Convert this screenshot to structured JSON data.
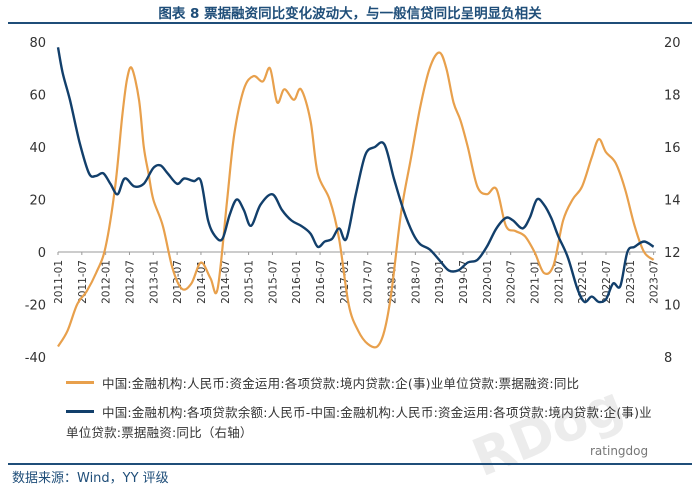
{
  "header": {
    "title": "图表 8 票据融资同比变化波动大，与一般信贷同比呈明显负相关"
  },
  "footer": {
    "source": "数据来源：Wind，YY 评级",
    "watermark": "ratingdog",
    "wm_mark": "RDog"
  },
  "colors": {
    "series1": "#e8a04c",
    "series2": "#123f6b",
    "accent": "#1f4e79"
  },
  "chart_data": {
    "type": "line",
    "title": "图表 8 票据融资同比变化波动大，与一般信贷同比呈明显负相关",
    "x_tick_labels": [
      "2011-01",
      "2011-07",
      "2012-01",
      "2012-07",
      "2013-01",
      "2013-07",
      "2014-01",
      "2014-07",
      "2015-01",
      "2015-07",
      "2016-01",
      "2016-07",
      "2017-01",
      "2017-07",
      "2018-01",
      "2018-07",
      "2019-01",
      "2019-07",
      "2020-01",
      "2020-07",
      "2021-01",
      "2021-07",
      "2022-01",
      "2022-07",
      "2023-01",
      "2023-07"
    ],
    "left_axis": {
      "ylim": [
        -40,
        80
      ],
      "ticks": [
        -40,
        -20,
        0,
        20,
        40,
        60,
        80
      ]
    },
    "right_axis": {
      "ylim": [
        8,
        20
      ],
      "ticks": [
        8,
        10,
        12,
        14,
        16,
        18,
        20
      ]
    },
    "grid": false,
    "legend": "bottom",
    "series": [
      {
        "name": "中国:金融机构:人民币:资金运用:各项贷款:境内贷款:企(事)业单位贷款:票据融资:同比",
        "axis": "left",
        "x": [
          2011.0,
          2011.2,
          2011.4,
          2011.6,
          2011.8,
          2012.0,
          2012.2,
          2012.35,
          2012.45,
          2012.55,
          2012.7,
          2012.8,
          2012.9,
          2013.0,
          2013.2,
          2013.4,
          2013.6,
          2013.8,
          2014.0,
          2014.2,
          2014.35,
          2014.55,
          2014.7,
          2014.9,
          2015.1,
          2015.3,
          2015.45,
          2015.6,
          2015.75,
          2015.95,
          2016.1,
          2016.3,
          2016.45,
          2016.7,
          2016.9,
          2017.1,
          2017.3,
          2017.5,
          2017.7,
          2017.85,
          2018.0,
          2018.2,
          2018.4,
          2018.6,
          2018.8,
          2019.0,
          2019.15,
          2019.3,
          2019.45,
          2019.6,
          2019.8,
          2020.0,
          2020.2,
          2020.4,
          2020.6,
          2020.8,
          2021.0,
          2021.2,
          2021.4,
          2021.6,
          2021.8,
          2022.0,
          2022.2,
          2022.35,
          2022.5,
          2022.7,
          2022.9,
          2023.1,
          2023.3,
          2023.5
        ],
        "values": [
          -36,
          -30,
          -20,
          -15,
          -8,
          2,
          25,
          52,
          66,
          70,
          58,
          40,
          30,
          20,
          10,
          -6,
          -14,
          -12,
          -4,
          -10,
          -14,
          20,
          45,
          62,
          67,
          65,
          70,
          57,
          62,
          58,
          62,
          50,
          30,
          20,
          5,
          -20,
          -30,
          -35,
          -36,
          -30,
          -15,
          15,
          35,
          55,
          70,
          76,
          70,
          57,
          50,
          40,
          25,
          22,
          24,
          10,
          8,
          6,
          0,
          -8,
          -5,
          12,
          20,
          25,
          36,
          43,
          38,
          34,
          24,
          10,
          0,
          -3
        ]
      },
      {
        "name": "中国:金融机构:各项贷款余额:人民币-中国:金融机构:人民币:资金运用:各项贷款:境内贷款:企(事)业单位贷款:票据融资:同比（右轴）",
        "axis": "right",
        "x": [
          2011.0,
          2011.1,
          2011.25,
          2011.45,
          2011.65,
          2011.8,
          2011.95,
          2012.1,
          2012.25,
          2012.4,
          2012.6,
          2012.8,
          2013.0,
          2013.15,
          2013.3,
          2013.5,
          2013.65,
          2013.85,
          2014.0,
          2014.15,
          2014.3,
          2014.45,
          2014.6,
          2014.75,
          2014.9,
          2015.05,
          2015.25,
          2015.5,
          2015.7,
          2015.9,
          2016.1,
          2016.3,
          2016.45,
          2016.6,
          2016.75,
          2016.9,
          2017.05,
          2017.25,
          2017.45,
          2017.65,
          2017.85,
          2018.05,
          2018.25,
          2018.45,
          2018.6,
          2018.8,
          2019.0,
          2019.2,
          2019.4,
          2019.6,
          2019.8,
          2020.0,
          2020.2,
          2020.4,
          2020.55,
          2020.75,
          2020.9,
          2021.05,
          2021.2,
          2021.35,
          2021.5,
          2021.7,
          2021.9,
          2022.05,
          2022.2,
          2022.35,
          2022.5,
          2022.65,
          2022.8,
          2022.95,
          2023.1,
          2023.3,
          2023.5
        ],
        "values": [
          19.8,
          18.8,
          17.8,
          16.2,
          15,
          14.9,
          15,
          14.6,
          14.2,
          14.8,
          14.5,
          14.6,
          15.2,
          15.3,
          15,
          14.6,
          14.8,
          14.7,
          14.7,
          13.2,
          12.6,
          12.5,
          13.4,
          14,
          13.6,
          13,
          13.8,
          14.2,
          13.6,
          13.2,
          13,
          12.7,
          12.2,
          12.4,
          12.5,
          12.9,
          12.5,
          14.2,
          15.7,
          16,
          16.1,
          14.8,
          13.6,
          12.7,
          12.3,
          12.1,
          11.7,
          11.3,
          11.3,
          11.6,
          11.7,
          12.2,
          12.9,
          13.3,
          13.2,
          12.9,
          13.3,
          14,
          13.8,
          13.3,
          12.6,
          11.8,
          10.6,
          10.1,
          10.3,
          10.1,
          10.2,
          10.8,
          10.7,
          12.0,
          12.2,
          12.4,
          12.2
        ]
      }
    ]
  }
}
